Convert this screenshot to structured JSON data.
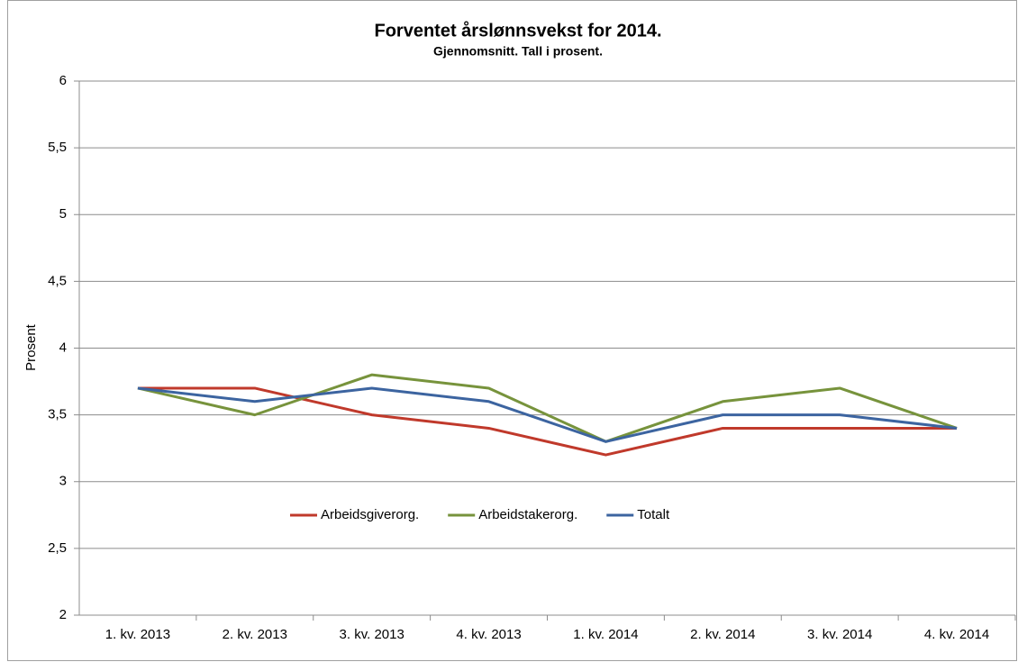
{
  "chart_data": {
    "type": "line",
    "title": "Forventet årslønnsvekst for 2014.",
    "subtitle": "Gjennomsnitt.  Tall i prosent.",
    "y_label": "Prosent",
    "categories": [
      "1. kv. 2013",
      "2. kv. 2013",
      "3. kv. 2013",
      "4. kv. 2013",
      "1. kv. 2014",
      "2. kv. 2014",
      "3. kv. 2014",
      "4. kv. 2014"
    ],
    "series": [
      {
        "name": "Arbeidsgiverorg.",
        "color": "#c0392b",
        "values": [
          3.7,
          3.7,
          3.5,
          3.4,
          3.2,
          3.4,
          3.4,
          3.4
        ]
      },
      {
        "name": "Arbeidstakerorg.",
        "color": "#77933c",
        "values": [
          3.7,
          3.5,
          3.8,
          3.7,
          3.3,
          3.6,
          3.7,
          3.4
        ]
      },
      {
        "name": "Totalt",
        "color": "#3c64a0",
        "values": [
          3.7,
          3.6,
          3.7,
          3.6,
          3.3,
          3.5,
          3.5,
          3.4
        ]
      }
    ],
    "ylim": [
      2,
      6
    ],
    "yticks": [
      2,
      {
        "value": 2.5,
        "label": "2,5"
      },
      3,
      {
        "value": 3.5,
        "label": "3,5"
      },
      4,
      {
        "value": 4.5,
        "label": "4,5"
      },
      5,
      {
        "value": 5.5,
        "label": "5,5"
      },
      6
    ],
    "grid": true
  }
}
